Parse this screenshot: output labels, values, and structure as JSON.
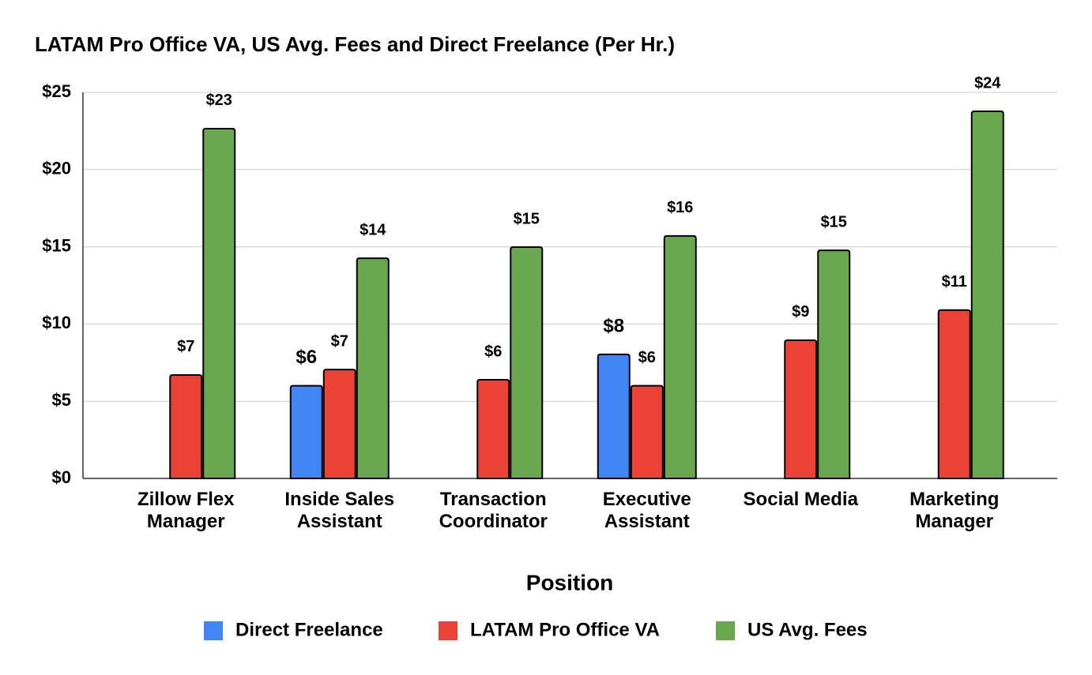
{
  "chart_data": {
    "type": "bar",
    "title": "LATAM Pro Office VA, US Avg. Fees and Direct Freelance (Per Hr.)",
    "x_label": "Position",
    "categories": [
      "Zillow Flex Manager",
      "Inside Sales Assistant",
      "Transaction Coordinator",
      "Executive Assistant",
      "Social Media",
      "Marketing Manager"
    ],
    "series": [
      {
        "name": "Direct Freelance",
        "color": "#4285f4",
        "values": [
          null,
          6,
          null,
          8.03,
          null,
          null
        ],
        "value_labels": [
          null,
          "$6",
          null,
          "$8",
          null,
          null
        ]
      },
      {
        "name": "LATAM Pro Office VA",
        "color": "#ea4335",
        "values": [
          6.7,
          7.05,
          6.39,
          6,
          8.95,
          10.9
        ],
        "value_labels": [
          "$7",
          "$7",
          "$6",
          "$6",
          "$9",
          "$11"
        ]
      },
      {
        "name": "US Avg. Fees",
        "color": "#6aa84f",
        "values": [
          22.65,
          14.26,
          14.98,
          15.7,
          14.77,
          23.77
        ],
        "value_labels": [
          "$23",
          "$14",
          "$15",
          "$16",
          "$15",
          "$24"
        ]
      }
    ],
    "ylim": [
      0,
      25
    ],
    "yticks": [
      {
        "value": 0,
        "label": "$0"
      },
      {
        "value": 5,
        "label": "$5"
      },
      {
        "value": 10,
        "label": "$10"
      },
      {
        "value": 15,
        "label": "$15"
      },
      {
        "value": 20,
        "label": "$20"
      },
      {
        "value": 25,
        "label": "$25"
      }
    ],
    "grid": true,
    "legend": "bottom"
  }
}
